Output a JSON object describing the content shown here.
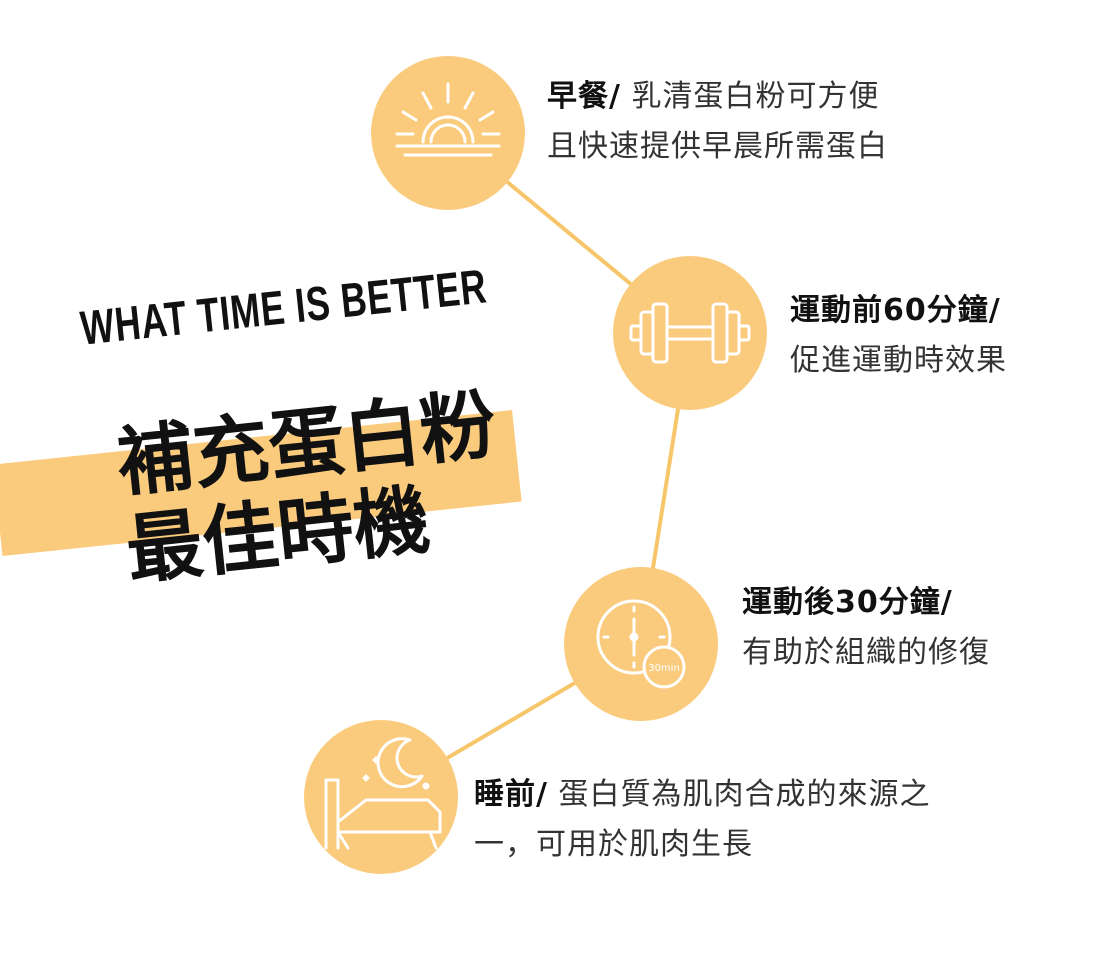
{
  "headline": "WHAT TIME IS BETTER",
  "title_lines": [
    "補充蛋白粉",
    "最佳時機"
  ],
  "colors": {
    "accent": "#FACB7D",
    "line": "#F7C66B",
    "text": "#333333",
    "heading": "#111111"
  },
  "items": [
    {
      "icon": "sunrise-icon",
      "label": "早餐/",
      "desc_lines": [
        "乳清蛋白粉可方便",
        "且快速提供早晨所需蛋白"
      ]
    },
    {
      "icon": "dumbbell-icon",
      "label": "運動前60分鐘/",
      "desc_lines": [
        "",
        "促進運動時效果"
      ]
    },
    {
      "icon": "clock-icon",
      "icon_text": "30min",
      "label": "運動後30分鐘/",
      "desc_lines": [
        "",
        "有助於組織的修復"
      ]
    },
    {
      "icon": "moon-bed-icon",
      "label": "睡前/",
      "desc_lines": [
        "蛋白質為肌肉合成的來源之",
        "一，可用於肌肉生長"
      ]
    }
  ]
}
